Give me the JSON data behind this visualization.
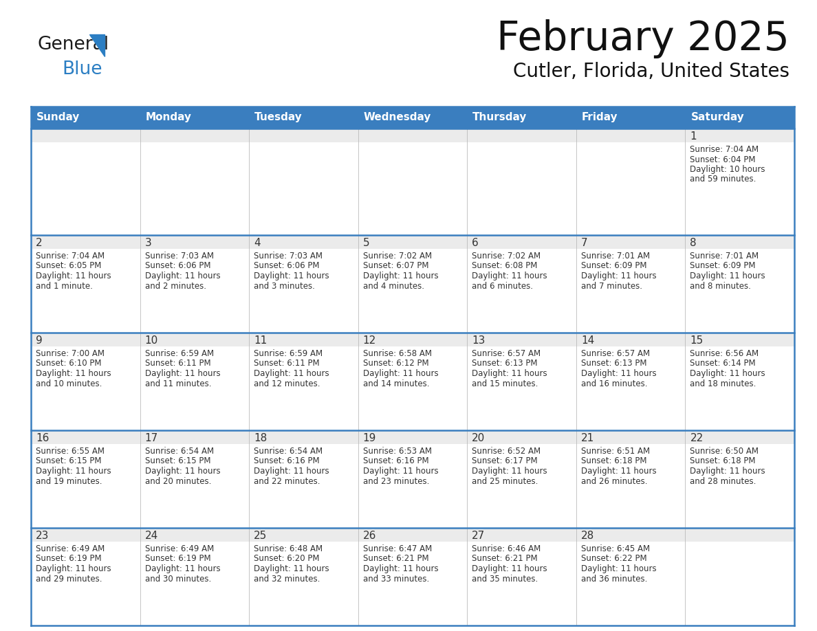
{
  "title": "February 2025",
  "subtitle": "Cutler, Florida, United States",
  "days_of_week": [
    "Sunday",
    "Monday",
    "Tuesday",
    "Wednesday",
    "Thursday",
    "Friday",
    "Saturday"
  ],
  "header_bg": "#3A7EBF",
  "header_text_color": "#FFFFFF",
  "cell_bg_light": "#EBEBEB",
  "cell_bg_white": "#FFFFFF",
  "border_color": "#3A7EBF",
  "divider_color": "#3A7EBF",
  "text_color": "#333333",
  "day_num_color": "#333333",
  "calendar_data": [
    [
      {
        "day": null,
        "sunrise": null,
        "sunset": null,
        "daylight_line1": null,
        "daylight_line2": null
      },
      {
        "day": null,
        "sunrise": null,
        "sunset": null,
        "daylight_line1": null,
        "daylight_line2": null
      },
      {
        "day": null,
        "sunrise": null,
        "sunset": null,
        "daylight_line1": null,
        "daylight_line2": null
      },
      {
        "day": null,
        "sunrise": null,
        "sunset": null,
        "daylight_line1": null,
        "daylight_line2": null
      },
      {
        "day": null,
        "sunrise": null,
        "sunset": null,
        "daylight_line1": null,
        "daylight_line2": null
      },
      {
        "day": null,
        "sunrise": null,
        "sunset": null,
        "daylight_line1": null,
        "daylight_line2": null
      },
      {
        "day": 1,
        "sunrise": "7:04 AM",
        "sunset": "6:04 PM",
        "daylight_line1": "Daylight: 10 hours",
        "daylight_line2": "and 59 minutes."
      }
    ],
    [
      {
        "day": 2,
        "sunrise": "7:04 AM",
        "sunset": "6:05 PM",
        "daylight_line1": "Daylight: 11 hours",
        "daylight_line2": "and 1 minute."
      },
      {
        "day": 3,
        "sunrise": "7:03 AM",
        "sunset": "6:06 PM",
        "daylight_line1": "Daylight: 11 hours",
        "daylight_line2": "and 2 minutes."
      },
      {
        "day": 4,
        "sunrise": "7:03 AM",
        "sunset": "6:06 PM",
        "daylight_line1": "Daylight: 11 hours",
        "daylight_line2": "and 3 minutes."
      },
      {
        "day": 5,
        "sunrise": "7:02 AM",
        "sunset": "6:07 PM",
        "daylight_line1": "Daylight: 11 hours",
        "daylight_line2": "and 4 minutes."
      },
      {
        "day": 6,
        "sunrise": "7:02 AM",
        "sunset": "6:08 PM",
        "daylight_line1": "Daylight: 11 hours",
        "daylight_line2": "and 6 minutes."
      },
      {
        "day": 7,
        "sunrise": "7:01 AM",
        "sunset": "6:09 PM",
        "daylight_line1": "Daylight: 11 hours",
        "daylight_line2": "and 7 minutes."
      },
      {
        "day": 8,
        "sunrise": "7:01 AM",
        "sunset": "6:09 PM",
        "daylight_line1": "Daylight: 11 hours",
        "daylight_line2": "and 8 minutes."
      }
    ],
    [
      {
        "day": 9,
        "sunrise": "7:00 AM",
        "sunset": "6:10 PM",
        "daylight_line1": "Daylight: 11 hours",
        "daylight_line2": "and 10 minutes."
      },
      {
        "day": 10,
        "sunrise": "6:59 AM",
        "sunset": "6:11 PM",
        "daylight_line1": "Daylight: 11 hours",
        "daylight_line2": "and 11 minutes."
      },
      {
        "day": 11,
        "sunrise": "6:59 AM",
        "sunset": "6:11 PM",
        "daylight_line1": "Daylight: 11 hours",
        "daylight_line2": "and 12 minutes."
      },
      {
        "day": 12,
        "sunrise": "6:58 AM",
        "sunset": "6:12 PM",
        "daylight_line1": "Daylight: 11 hours",
        "daylight_line2": "and 14 minutes."
      },
      {
        "day": 13,
        "sunrise": "6:57 AM",
        "sunset": "6:13 PM",
        "daylight_line1": "Daylight: 11 hours",
        "daylight_line2": "and 15 minutes."
      },
      {
        "day": 14,
        "sunrise": "6:57 AM",
        "sunset": "6:13 PM",
        "daylight_line1": "Daylight: 11 hours",
        "daylight_line2": "and 16 minutes."
      },
      {
        "day": 15,
        "sunrise": "6:56 AM",
        "sunset": "6:14 PM",
        "daylight_line1": "Daylight: 11 hours",
        "daylight_line2": "and 18 minutes."
      }
    ],
    [
      {
        "day": 16,
        "sunrise": "6:55 AM",
        "sunset": "6:15 PM",
        "daylight_line1": "Daylight: 11 hours",
        "daylight_line2": "and 19 minutes."
      },
      {
        "day": 17,
        "sunrise": "6:54 AM",
        "sunset": "6:15 PM",
        "daylight_line1": "Daylight: 11 hours",
        "daylight_line2": "and 20 minutes."
      },
      {
        "day": 18,
        "sunrise": "6:54 AM",
        "sunset": "6:16 PM",
        "daylight_line1": "Daylight: 11 hours",
        "daylight_line2": "and 22 minutes."
      },
      {
        "day": 19,
        "sunrise": "6:53 AM",
        "sunset": "6:16 PM",
        "daylight_line1": "Daylight: 11 hours",
        "daylight_line2": "and 23 minutes."
      },
      {
        "day": 20,
        "sunrise": "6:52 AM",
        "sunset": "6:17 PM",
        "daylight_line1": "Daylight: 11 hours",
        "daylight_line2": "and 25 minutes."
      },
      {
        "day": 21,
        "sunrise": "6:51 AM",
        "sunset": "6:18 PM",
        "daylight_line1": "Daylight: 11 hours",
        "daylight_line2": "and 26 minutes."
      },
      {
        "day": 22,
        "sunrise": "6:50 AM",
        "sunset": "6:18 PM",
        "daylight_line1": "Daylight: 11 hours",
        "daylight_line2": "and 28 minutes."
      }
    ],
    [
      {
        "day": 23,
        "sunrise": "6:49 AM",
        "sunset": "6:19 PM",
        "daylight_line1": "Daylight: 11 hours",
        "daylight_line2": "and 29 minutes."
      },
      {
        "day": 24,
        "sunrise": "6:49 AM",
        "sunset": "6:19 PM",
        "daylight_line1": "Daylight: 11 hours",
        "daylight_line2": "and 30 minutes."
      },
      {
        "day": 25,
        "sunrise": "6:48 AM",
        "sunset": "6:20 PM",
        "daylight_line1": "Daylight: 11 hours",
        "daylight_line2": "and 32 minutes."
      },
      {
        "day": 26,
        "sunrise": "6:47 AM",
        "sunset": "6:21 PM",
        "daylight_line1": "Daylight: 11 hours",
        "daylight_line2": "and 33 minutes."
      },
      {
        "day": 27,
        "sunrise": "6:46 AM",
        "sunset": "6:21 PM",
        "daylight_line1": "Daylight: 11 hours",
        "daylight_line2": "and 35 minutes."
      },
      {
        "day": 28,
        "sunrise": "6:45 AM",
        "sunset": "6:22 PM",
        "daylight_line1": "Daylight: 11 hours",
        "daylight_line2": "and 36 minutes."
      },
      {
        "day": null,
        "sunrise": null,
        "sunset": null,
        "daylight_line1": null,
        "daylight_line2": null
      }
    ]
  ],
  "logo_color_general": "#1a1a1a",
  "logo_color_blue": "#2B7EC3"
}
